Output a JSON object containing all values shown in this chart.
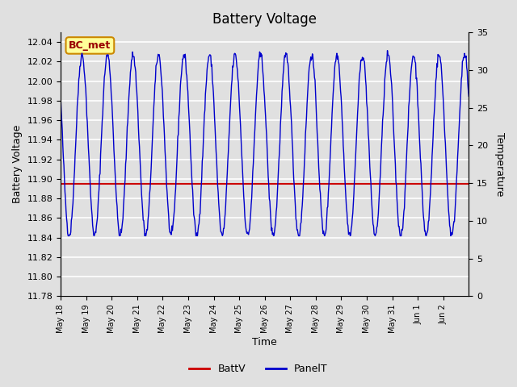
{
  "title": "Battery Voltage",
  "xlabel": "Time",
  "ylabel_left": "Battery Voltage",
  "ylabel_right": "Temperature",
  "ylim_left": [
    11.78,
    12.05
  ],
  "ylim_right": [
    0,
    35
  ],
  "yticks_left": [
    11.78,
    11.8,
    11.82,
    11.84,
    11.86,
    11.88,
    11.9,
    11.92,
    11.94,
    11.96,
    11.98,
    12.0,
    12.02,
    12.04
  ],
  "yticks_right": [
    0,
    5,
    10,
    15,
    20,
    25,
    30,
    35
  ],
  "xtick_labels": [
    "May 18",
    "May 19",
    "May 20",
    "May 21",
    "May 22",
    "May 23",
    "May 24",
    "May 25",
    "May 26",
    "May 27",
    "May 28",
    "May 29",
    "May 30",
    "May 31",
    "Jun 1",
    "Jun 2"
  ],
  "n_days": 16,
  "batt_v_value": 11.895,
  "bg_color": "#e0e0e0",
  "plot_bg_color": "#e0e0e0",
  "grid_color": "#ffffff",
  "batt_color": "#cc0000",
  "panel_color": "#0000cc",
  "legend_label_batt": "BattV",
  "legend_label_panel": "PanelT",
  "annotation_text": "BC_met",
  "annotation_bg": "#ffff99",
  "annotation_border": "#cc8800"
}
